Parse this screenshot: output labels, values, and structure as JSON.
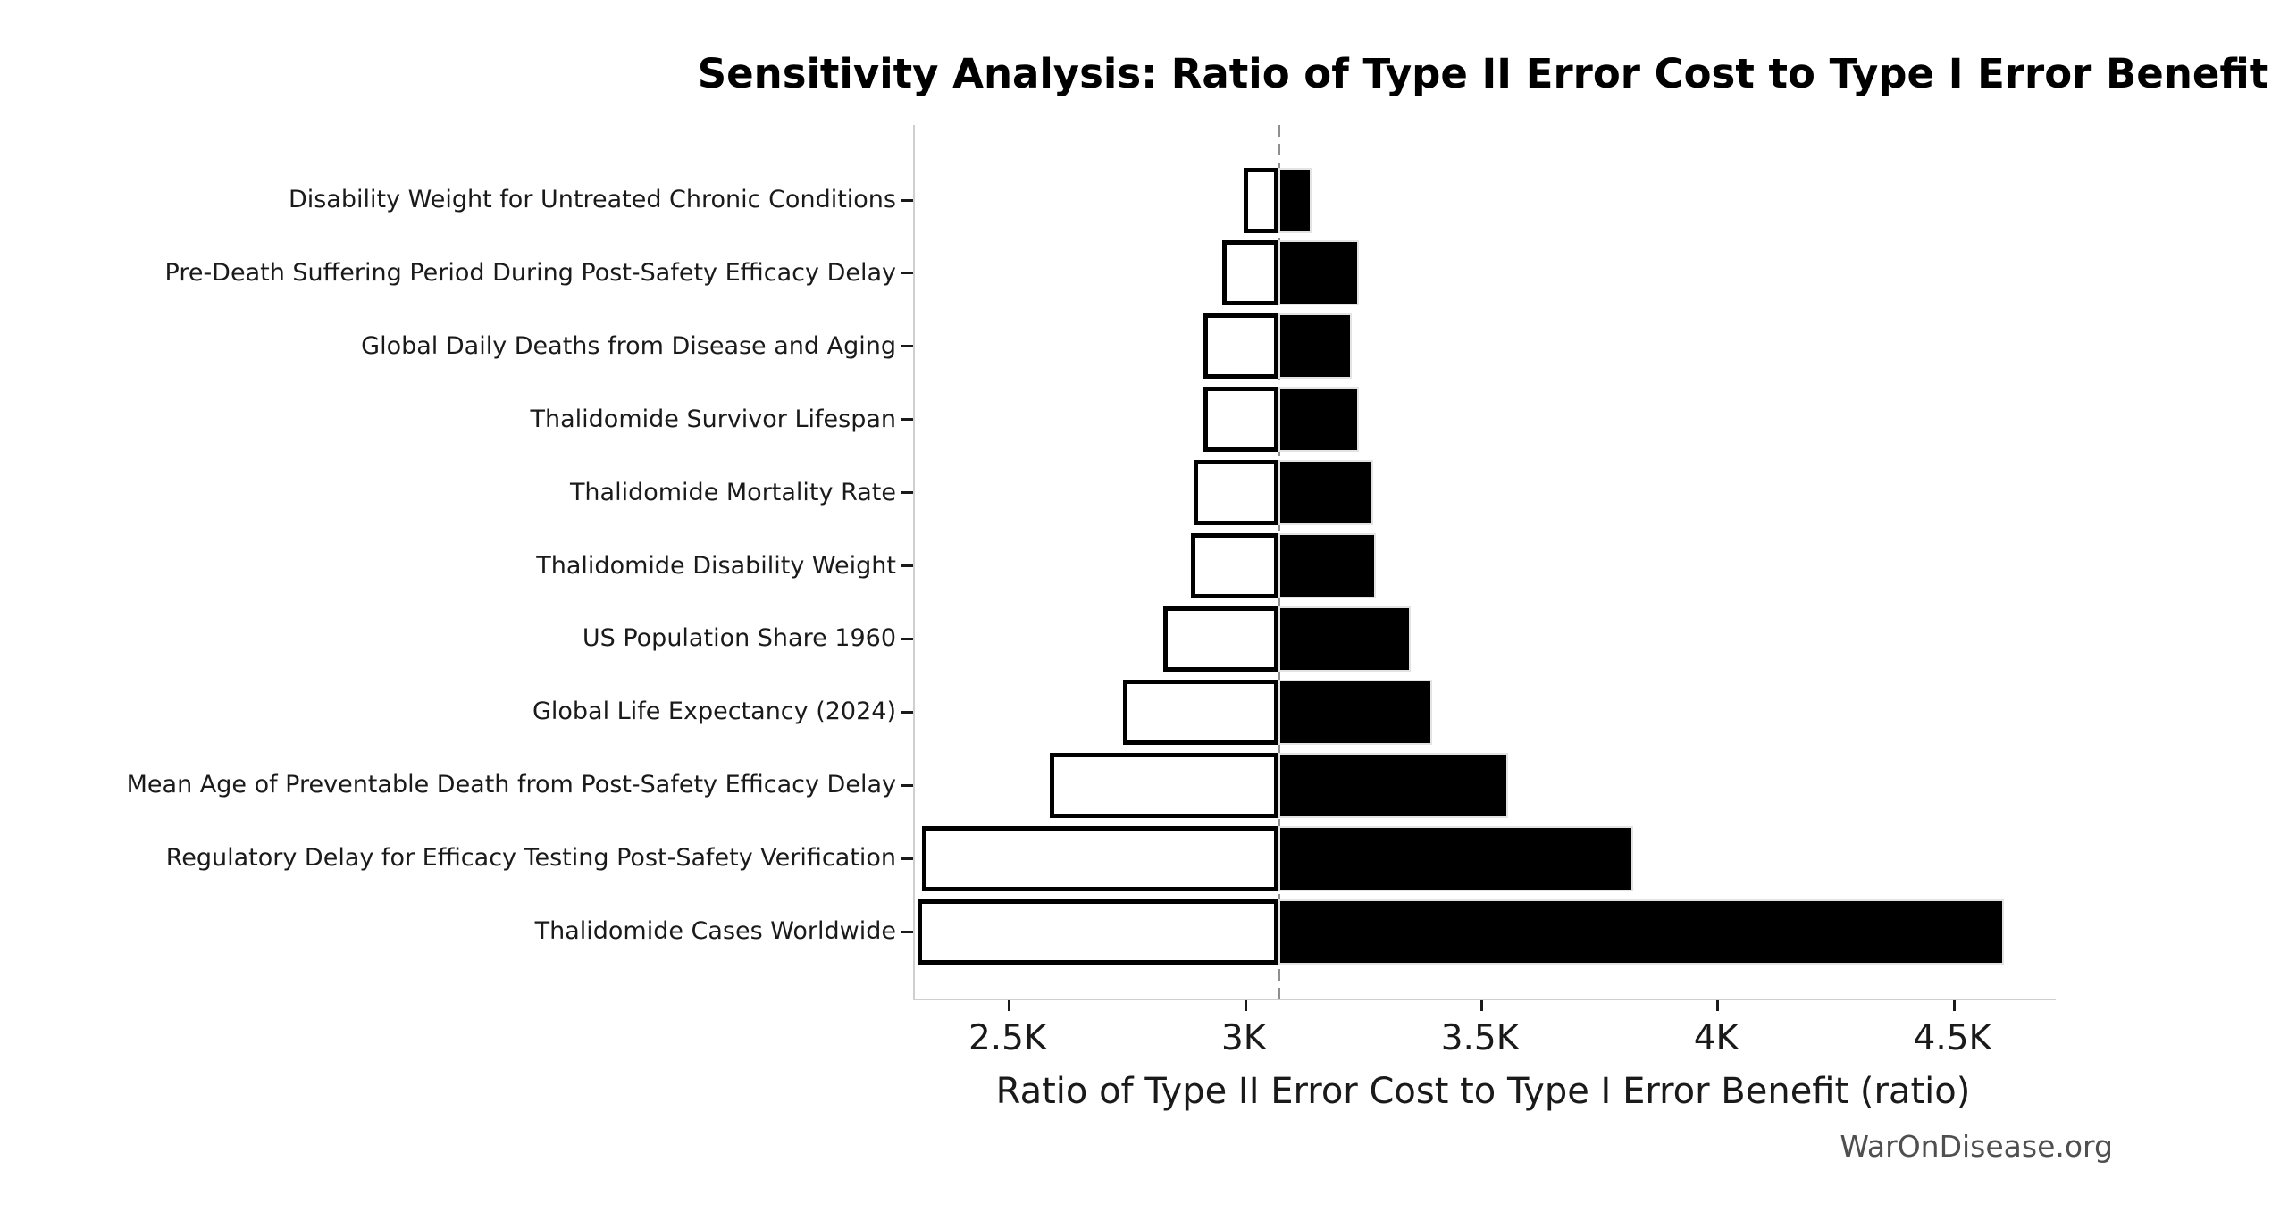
{
  "title": "Sensitivity Analysis: Ratio of Type II Error Cost to Type I Error Benefit",
  "watermark": "WarOnDisease.org",
  "chart_data": {
    "type": "bar",
    "subtype": "tornado",
    "orientation": "horizontal",
    "title": "Sensitivity Analysis: Ratio of Type II Error Cost to Type I Error Benefit",
    "xlabel": "Ratio of Type II Error Cost to Type I Error Benefit (ratio)",
    "ylabel": "",
    "xlim": [
      2300,
      4715
    ],
    "baseline": 3070,
    "grid": false,
    "legend": "none",
    "x_ticks": [
      {
        "value": 2500,
        "label": "2.5K"
      },
      {
        "value": 3000,
        "label": "3K"
      },
      {
        "value": 3500,
        "label": "3.5K"
      },
      {
        "value": 4000,
        "label": "4K"
      },
      {
        "value": 4500,
        "label": "4.5K"
      }
    ],
    "categories": [
      "Disability Weight for Untreated Chronic Conditions",
      "Pre-Death Suffering Period During Post-Safety Efficacy Delay",
      "Global Daily Deaths from Disease and Aging",
      "Thalidomide Survivor Lifespan",
      "Thalidomide Mortality Rate",
      "Thalidomide Disability Weight",
      "US Population Share 1960",
      "Global Life Expectancy (2024)",
      "Mean Age of Preventable Death from Post-Safety Efficacy Delay",
      "Regulatory Delay for Efficacy Testing Post-Safety Verification",
      "Thalidomide Cases Worldwide"
    ],
    "series": [
      {
        "name": "low",
        "values": [
          2995,
          2950,
          2910,
          2910,
          2890,
          2885,
          2825,
          2740,
          2585,
          2315,
          2305
        ]
      },
      {
        "name": "high",
        "values": [
          3140,
          3240,
          3225,
          3240,
          3270,
          3275,
          3350,
          3395,
          3555,
          3820,
          4605
        ]
      }
    ],
    "colors": {
      "low_fill": "#ffffff",
      "low_edge": "#000000",
      "high_fill": "#000000",
      "baseline_line": "#8f8f8f",
      "spine": "#cfcfcf",
      "tick": "#1a1a1a",
      "text": "#1a1a1a",
      "watermark": "#4f4f4f"
    }
  }
}
